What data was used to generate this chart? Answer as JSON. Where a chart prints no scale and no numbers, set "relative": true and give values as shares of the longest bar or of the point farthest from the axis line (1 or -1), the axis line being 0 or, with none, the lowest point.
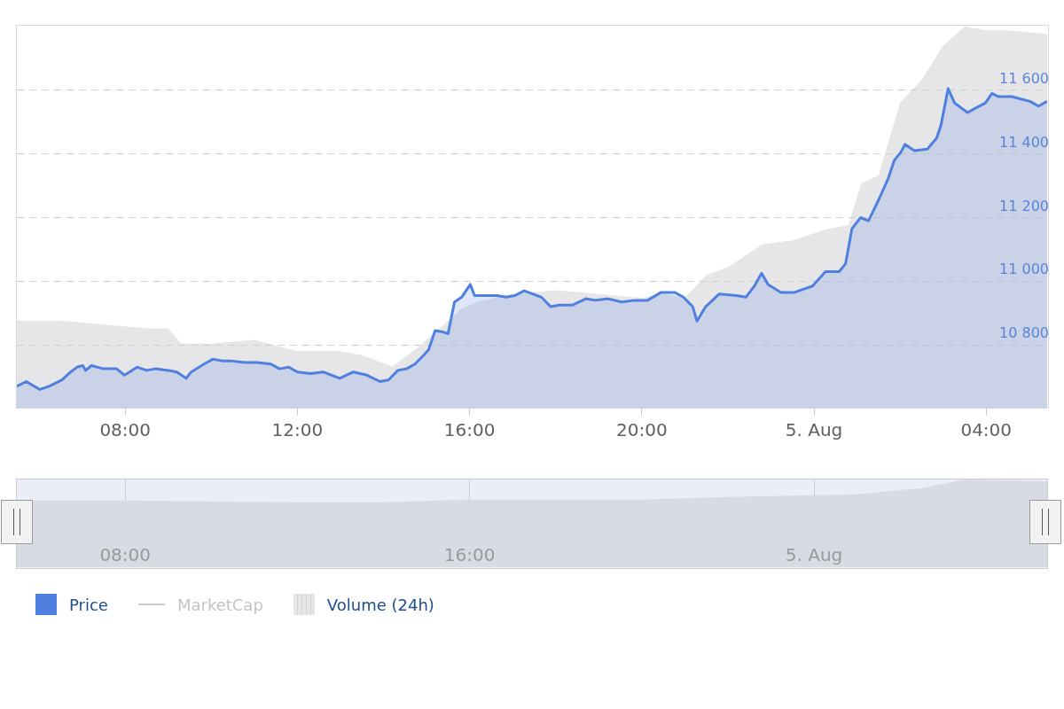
{
  "chart_data": [
    {
      "type": "area",
      "x": [
        "--08-04T05:29",
        "--08-04T05:42",
        "--08-04T06:01",
        "--08-04T06:14",
        "--08-04T06:32",
        "--08-04T06:44",
        "--08-04T06:53",
        "--08-04T07:01",
        "--08-04T07:05",
        "--08-04T07:13",
        "--08-04T07:30",
        "--08-04T07:48",
        "--08-04T07:59",
        "--08-04T08:17",
        "--08-04T08:30",
        "--08-04T08:42",
        "--08-04T09:00",
        "--08-04T09:12",
        "--08-04T09:25",
        "--08-04T09:32",
        "--08-04T09:50",
        "--08-04T10:02",
        "--08-04T10:15",
        "--08-04T10:27",
        "--08-04T10:46",
        "--08-04T11:04",
        "--08-04T11:23",
        "--08-04T11:35",
        "--08-04T11:48",
        "--08-04T12:00",
        "--08-04T12:18",
        "--08-04T12:36",
        "--08-04T12:59",
        "--08-04T13:18",
        "--08-04T13:37",
        "--08-04T13:55",
        "--08-04T14:07",
        "--08-04T14:20",
        "--08-04T14:32",
        "--08-04T14:44",
        "--08-04T14:57",
        "--08-04T15:03",
        "--08-04T15:12",
        "--08-04T15:24",
        "--08-04T15:30",
        "--08-04T15:39",
        "--08-04T15:49",
        "--08-04T16:01",
        "--08-04T16:07",
        "--08-04T16:20",
        "--08-04T16:38",
        "--08-04T16:51",
        "--08-04T17:03",
        "--08-04T17:16",
        "--08-04T17:28",
        "--08-04T17:40",
        "--08-04T17:53",
        "--08-04T18:05",
        "--08-04T18:23",
        "--08-04T18:42",
        "--08-04T18:55",
        "--08-04T19:13",
        "--08-04T19:32",
        "--08-04T19:50",
        "--08-04T20:08",
        "--08-04T20:27",
        "--08-04T20:46",
        "--08-04T20:58",
        "--08-04T21:11",
        "--08-04T21:17",
        "--08-04T21:29",
        "--08-04T21:48",
        "--08-04T22:12",
        "--08-04T22:25",
        "--08-04T22:37",
        "--08-04T22:47",
        "--08-04T22:56",
        "--08-04T23:14",
        "--08-04T23:33",
        "--08-04T23:45",
        "--08-04T23:58",
        "--08-05T00:16",
        "--08-05T00:35",
        "--08-05T00:44",
        "--08-05T00:53",
        "--08-05T01:05",
        "--08-05T01:16",
        "--08-05T01:30",
        "--08-05T01:43",
        "--08-05T01:52",
        "--08-05T02:01",
        "--08-05T02:07",
        "--08-05T02:20",
        "--08-05T02:38",
        "--08-05T02:51",
        "--08-05T02:57",
        "--08-05T03:07",
        "--08-05T03:16",
        "--08-05T03:34",
        "--08-05T03:46",
        "--08-05T03:59",
        "--08-05T04:08",
        "--08-05T04:17",
        "--08-05T04:36",
        "--08-05T05:01",
        "--08-05T05:13",
        "--08-05T05:25"
      ],
      "series": [
        {
          "name": "Price",
          "color": "#4f80e0",
          "values": [
            10670,
            10685,
            10660,
            10670,
            10690,
            10715,
            10730,
            10735,
            10720,
            10735,
            10725,
            10725,
            10705,
            10730,
            10720,
            10725,
            10720,
            10715,
            10695,
            10715,
            10740,
            10755,
            10750,
            10750,
            10745,
            10745,
            10740,
            10725,
            10730,
            10715,
            10710,
            10715,
            10695,
            10715,
            10705,
            10685,
            10690,
            10720,
            10725,
            10740,
            10770,
            10785,
            10845,
            10840,
            10835,
            10935,
            10950,
            10990,
            10955,
            10955,
            10955,
            10950,
            10955,
            10970,
            10960,
            10950,
            10920,
            10925,
            10925,
            10945,
            10940,
            10945,
            10935,
            10940,
            10940,
            10965,
            10965,
            10950,
            10920,
            10875,
            10920,
            10960,
            10955,
            10950,
            10985,
            11025,
            10990,
            10965,
            10965,
            10975,
            10985,
            11030,
            11030,
            11055,
            11165,
            11200,
            11190,
            11255,
            11320,
            11380,
            11405,
            11430,
            11410,
            11415,
            11450,
            11490,
            11605,
            11560,
            11530,
            11545,
            11560,
            11590,
            11580,
            11580,
            11565,
            11550,
            11565
          ]
        },
        {
          "name": "MarketCap",
          "type": "line",
          "color": "#cccccc",
          "values": [
            null,
            null,
            null,
            null,
            null,
            null,
            null,
            null,
            null,
            null,
            null,
            null,
            null,
            null,
            null,
            null,
            null,
            null,
            null,
            null,
            null,
            null,
            null,
            null,
            null,
            null,
            null,
            null,
            null,
            null,
            null,
            null,
            null,
            null,
            null,
            null,
            null,
            null,
            null,
            null,
            null,
            null,
            null,
            null,
            null,
            null,
            null,
            null,
            null,
            null,
            null,
            null,
            null,
            null,
            null,
            null,
            null,
            null,
            null,
            null,
            null,
            null,
            null,
            null,
            null,
            null,
            null,
            null,
            null,
            null,
            null,
            null,
            null,
            null,
            null,
            null,
            null,
            null,
            null,
            null,
            null,
            null,
            null,
            null,
            null,
            null,
            null,
            null,
            null,
            null,
            null,
            null,
            null,
            null,
            null,
            null,
            null,
            null,
            null,
            null,
            null,
            null,
            null,
            null,
            null,
            null,
            null
          ]
        }
      ],
      "xlim": [
        "--08-04T05:29",
        "--08-05T05:25"
      ],
      "xticks": [
        {
          "value": "--08-04T08:00",
          "label": "08:00"
        },
        {
          "value": "--08-04T12:00",
          "label": "12:00"
        },
        {
          "value": "--08-04T16:00",
          "label": "16:00"
        },
        {
          "value": "--08-04T20:00",
          "label": "20:00"
        },
        {
          "value": "--08-05T00:00",
          "label": "5. Aug"
        },
        {
          "value": "--08-05T04:00",
          "label": "04:00"
        }
      ],
      "ylim": [
        10600,
        11800
      ],
      "yticks": [
        {
          "value": 10800,
          "label": "10 800"
        },
        {
          "value": 11000,
          "label": "11 000"
        },
        {
          "value": 11200,
          "label": "11 200"
        },
        {
          "value": 11400,
          "label": "11 400"
        },
        {
          "value": 11600,
          "label": "11 600"
        }
      ],
      "grid": "y",
      "marker": "none",
      "legend": "bottom left"
    },
    {
      "type": "area",
      "relative": true,
      "x": [
        "--08-04T05:29",
        "--08-04T06:30",
        "--08-04T07:30",
        "--08-04T08:30",
        "--08-04T09:00",
        "--08-04T09:18",
        "--08-04T10:00",
        "--08-04T11:00",
        "--08-04T12:00",
        "--08-04T13:00",
        "--08-04T13:30",
        "--08-04T14:12",
        "--08-04T14:48",
        "--08-04T15:12",
        "--08-04T15:48",
        "--08-04T16:12",
        "--08-04T17:00",
        "--08-04T18:00",
        "--08-04T19:00",
        "--08-04T20:00",
        "--08-04T20:30",
        "--08-04T21:00",
        "--08-04T21:30",
        "--08-04T22:00",
        "--08-04T22:48",
        "--08-04T23:30",
        "--08-05T00:18",
        "--08-05T00:48",
        "--08-05T01:06",
        "--08-05T01:30",
        "--08-05T02:00",
        "--08-05T02:30",
        "--08-05T03:00",
        "--08-05T03:30",
        "--08-05T04:00",
        "--08-05T04:30",
        "--08-05T05:25"
      ],
      "series": [
        {
          "name": "Volume (24h)",
          "color": "#e6e6e8",
          "values": [
            0.23,
            0.23,
            0.22,
            0.21,
            0.21,
            0.17,
            0.17,
            0.18,
            0.15,
            0.15,
            0.14,
            0.11,
            0.16,
            0.2,
            0.26,
            0.28,
            0.3,
            0.31,
            0.3,
            0.29,
            0.3,
            0.29,
            0.35,
            0.37,
            0.43,
            0.44,
            0.47,
            0.48,
            0.59,
            0.61,
            0.8,
            0.86,
            0.95,
            1,
            0.99,
            0.99,
            0.98
          ]
        }
      ],
      "xlim": [
        "--08-04T05:29",
        "--08-05T05:25"
      ],
      "marker": "none",
      "legend": "bottom left"
    },
    {
      "type": "area",
      "relative": true,
      "x": [
        "--08-04T05:29",
        "--08-04T08:00",
        "--08-04T12:00",
        "--08-04T14:00",
        "--08-04T16:00",
        "--08-04T20:00",
        "--08-04T22:00",
        "--08-05T00:00",
        "--08-05T01:00",
        "--08-05T02:00",
        "--08-05T02:30",
        "--08-05T03:30",
        "--08-05T05:25"
      ],
      "values": [
        0.76,
        0.76,
        0.74,
        0.74,
        0.77,
        0.77,
        0.8,
        0.82,
        0.83,
        0.88,
        0.9,
        1,
        0.98
      ],
      "color": "#d8dbe3",
      "xlim": [
        "--08-04T05:29",
        "--08-05T05:25"
      ],
      "xticks": [
        {
          "value": "--08-04T08:00",
          "label": "08:00"
        },
        {
          "value": "--08-04T16:00",
          "label": "16:00"
        },
        {
          "value": "--08-05T00:00",
          "label": "5. Aug"
        }
      ],
      "grid": "x",
      "marker": "none"
    }
  ]
}
